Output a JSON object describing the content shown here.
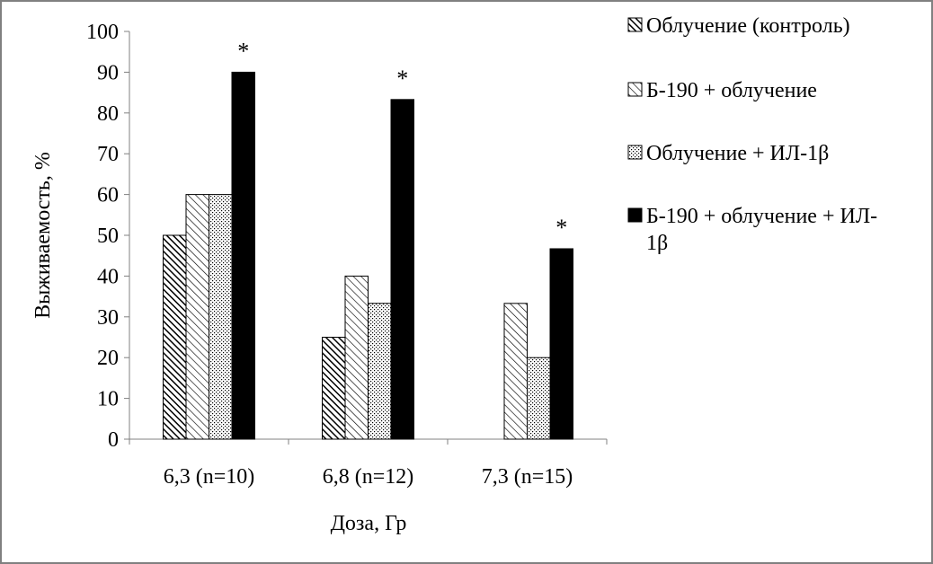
{
  "chart_data": {
    "type": "bar",
    "title": "",
    "xlabel": "Доза, Гр",
    "ylabel": "Выживаемость, %",
    "ylim": [
      0,
      100
    ],
    "yticks": [
      "0",
      "10",
      "20",
      "30",
      "40",
      "50",
      "60",
      "70",
      "80",
      "90",
      "100"
    ],
    "categories": [
      "6,3 (n=10)",
      "6,8 (n=12)",
      "7,3 (n=15)"
    ],
    "series": [
      {
        "name": "Облучение (контроль)",
        "values": [
          50,
          25,
          0
        ],
        "pattern": "hatch-dense"
      },
      {
        "name": "Б-190 + облучение",
        "values": [
          60,
          40,
          33.3
        ],
        "pattern": "hatch-light"
      },
      {
        "name": "Облучение + ИЛ-1β",
        "values": [
          60,
          33.3,
          20
        ],
        "pattern": "dots"
      },
      {
        "name": "Б-190 + облучение + ИЛ-1β",
        "values": [
          90,
          83.3,
          46.7
        ],
        "pattern": "solid"
      }
    ],
    "annotations": [
      "*",
      "*",
      "*"
    ],
    "legend_position": "right",
    "grid": false,
    "colors": {
      "border": "#808080",
      "bar_fill": "#000000",
      "background": "#ffffff"
    }
  }
}
